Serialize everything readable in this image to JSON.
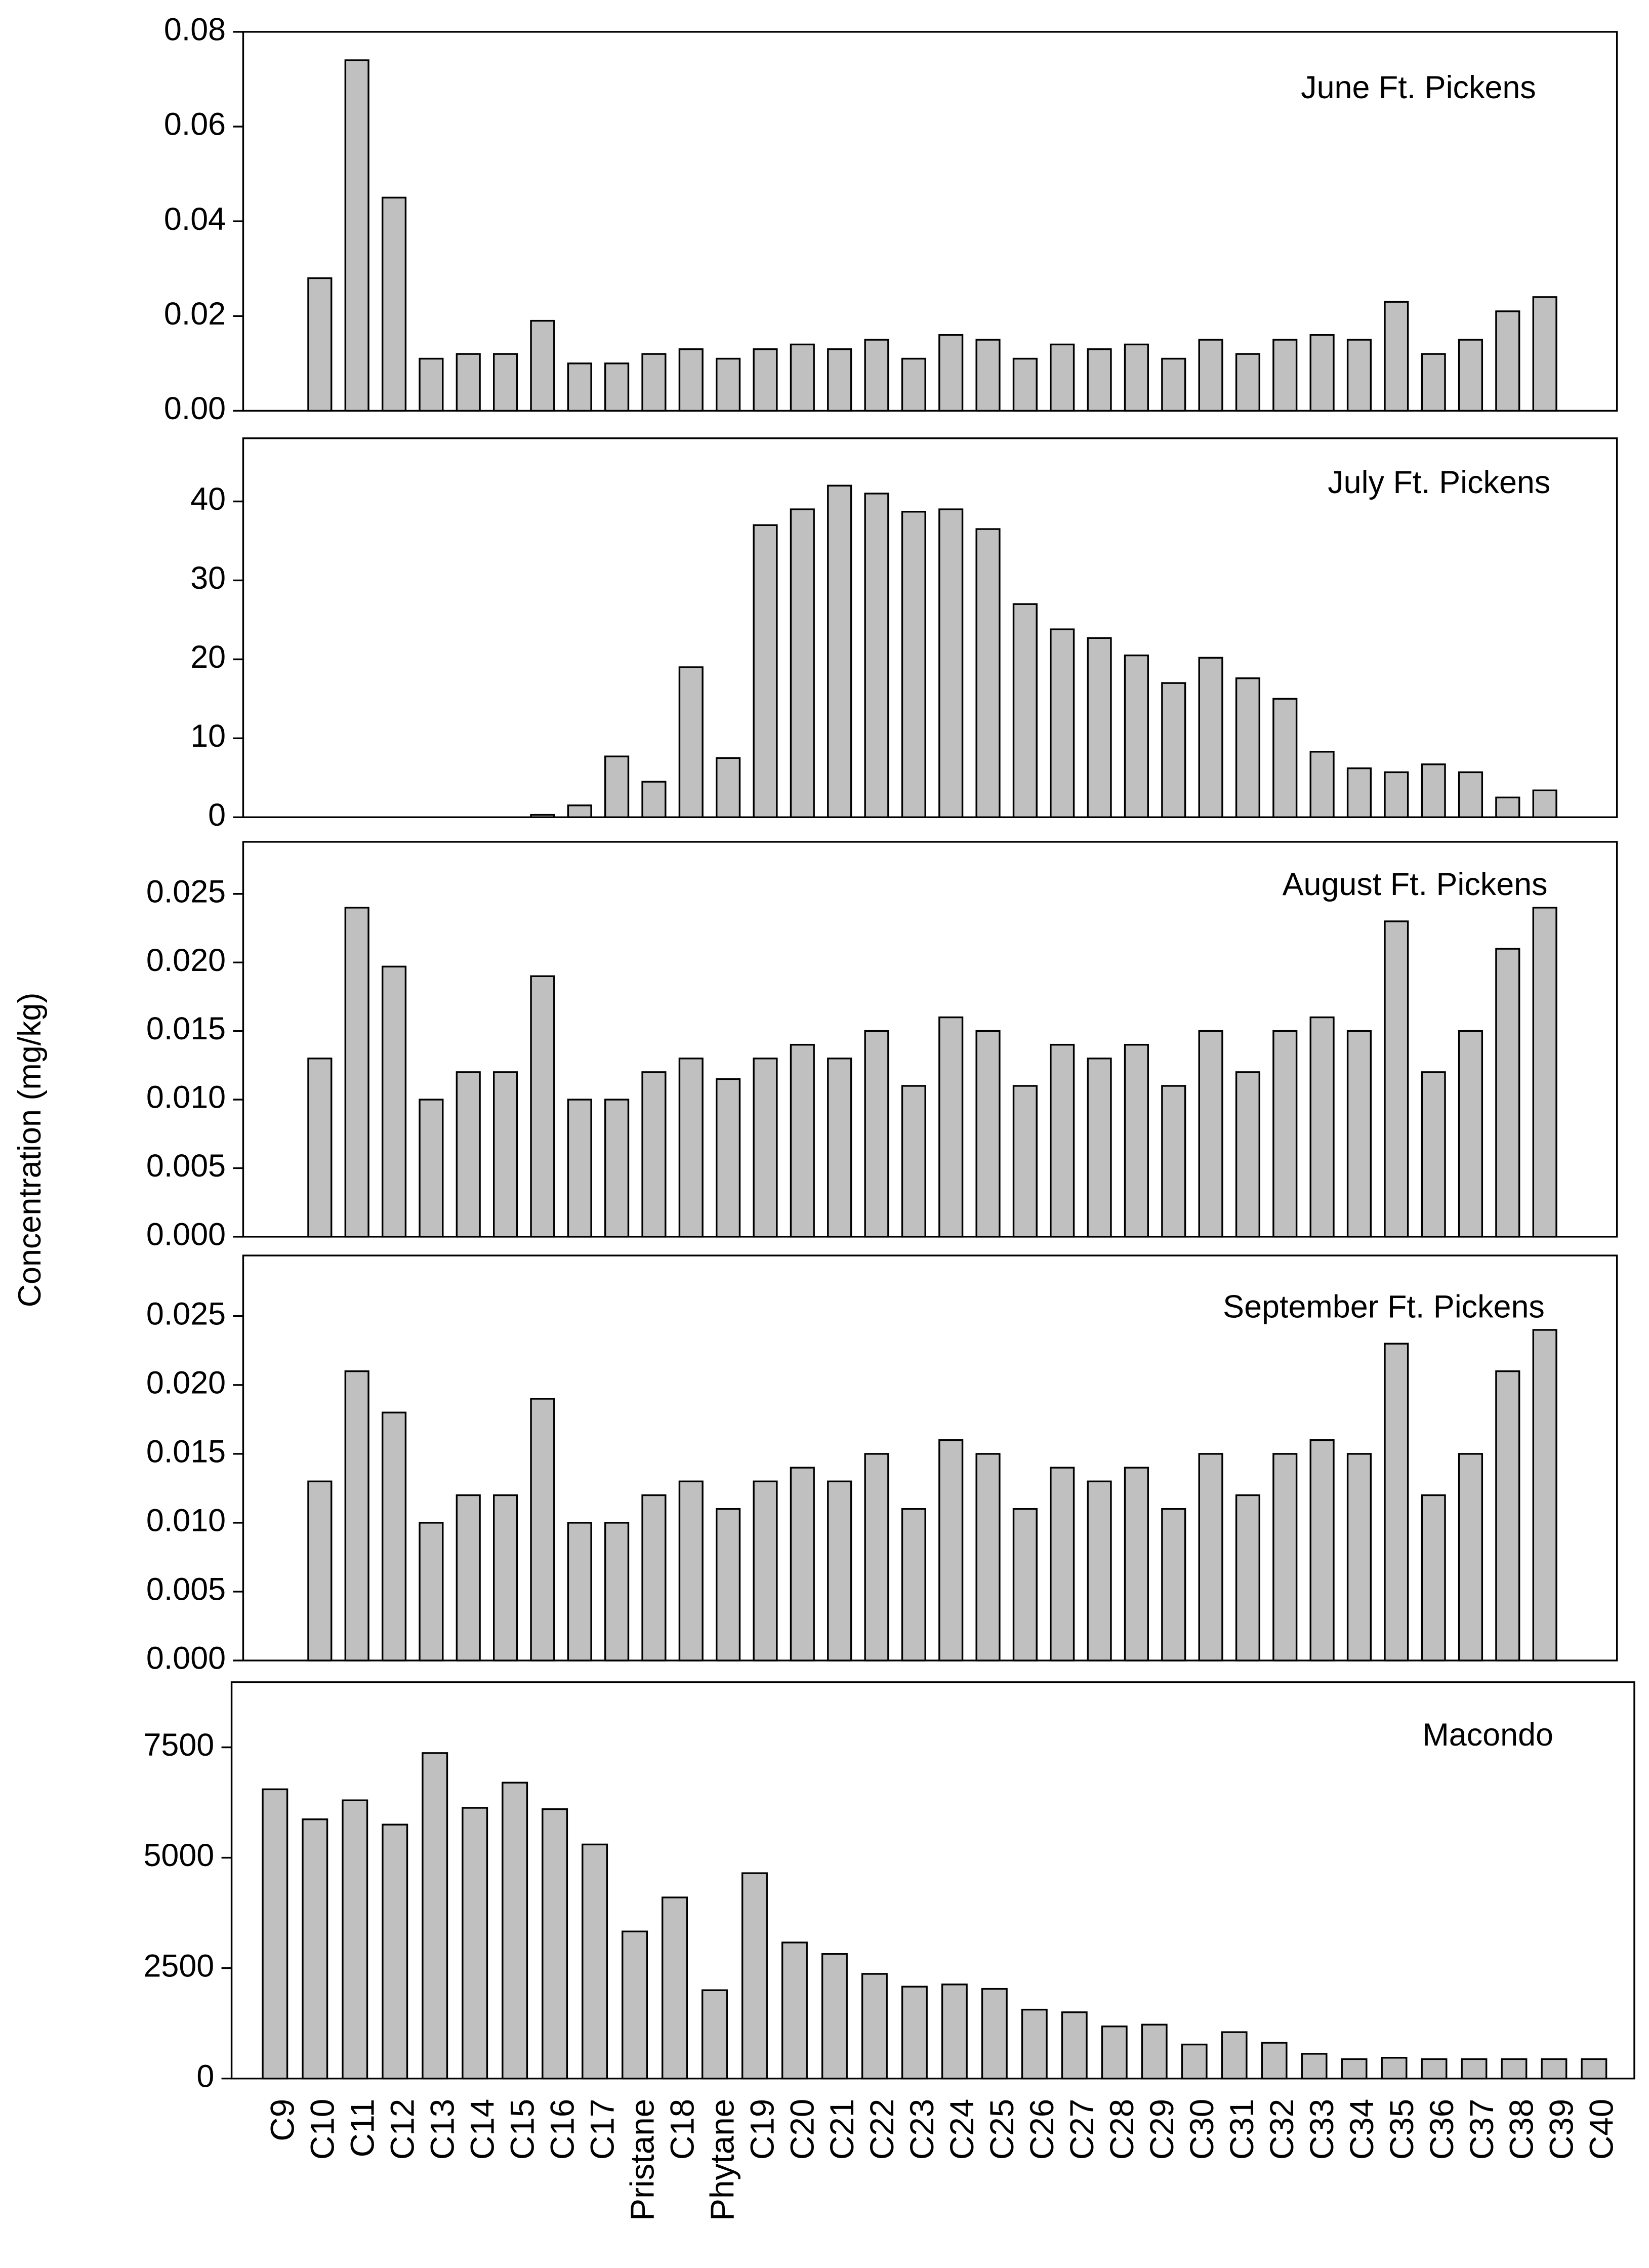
{
  "ylabel": "Concentration (mg/kg)",
  "chart_data": [
    {
      "type": "bar",
      "title": "June Ft. Pickens",
      "color": "#c0c0c0",
      "values": [
        0.028,
        0.074,
        0.045,
        0.011,
        0.012,
        0.012,
        0.019,
        0.01,
        0.01,
        0.012,
        0.013,
        0.011,
        0.013,
        0.014,
        0.013,
        0.015,
        0.011,
        0.016,
        0.015,
        0.011,
        0.014,
        0.013,
        0.014,
        0.011,
        0.015,
        0.012,
        0.015,
        0.016,
        0.015,
        0.023,
        0.012,
        0.015,
        0.021,
        0.024
      ],
      "ylim": [
        0,
        0.08
      ],
      "yticks": [
        {
          "value": 0,
          "label": "0.00"
        },
        0.02,
        0.04,
        0.06,
        0.08
      ]
    },
    {
      "type": "bar",
      "title": "July Ft. Pickens",
      "color": "#c0c0c0",
      "values": [
        0,
        0,
        0,
        0,
        0,
        0,
        0.3,
        1.5,
        7.7,
        4.5,
        19,
        7.5,
        37,
        39,
        42,
        41,
        38.7,
        39,
        36.5,
        27,
        23.8,
        22.7,
        20.5,
        17,
        20.2,
        17.6,
        15,
        8.3,
        6.2,
        5.7,
        6.7,
        5.7,
        2.5,
        3.4
      ],
      "ylim": [
        0,
        48
      ],
      "yticks": [
        0,
        10,
        20,
        30,
        40
      ]
    },
    {
      "type": "bar",
      "title": "August Ft. Pickens",
      "color": "#c0c0c0",
      "values": [
        0.013,
        0.024,
        0.0197,
        0.01,
        0.012,
        0.012,
        0.019,
        0.01,
        0.01,
        0.012,
        0.013,
        0.0115,
        0.013,
        0.014,
        0.013,
        0.015,
        0.011,
        0.016,
        0.015,
        0.011,
        0.014,
        0.013,
        0.014,
        0.011,
        0.015,
        0.012,
        0.015,
        0.016,
        0.015,
        0.023,
        0.012,
        0.015,
        0.021,
        0.024
      ],
      "ylim": [
        0,
        0.0288
      ],
      "yticks": [
        {
          "value": 0,
          "label": "0.000"
        },
        0.005,
        {
          "value": 0.01,
          "label": "0.010"
        },
        0.015,
        {
          "value": 0.02,
          "label": "0.020"
        },
        0.025
      ]
    },
    {
      "type": "bar",
      "title": "September Ft. Pickens",
      "color": "#c0c0c0",
      "values": [
        0.013,
        0.021,
        0.018,
        0.01,
        0.012,
        0.012,
        0.019,
        0.01,
        0.01,
        0.012,
        0.013,
        0.011,
        0.013,
        0.014,
        0.013,
        0.015,
        0.011,
        0.016,
        0.015,
        0.011,
        0.014,
        0.013,
        0.014,
        0.011,
        0.015,
        0.012,
        0.015,
        0.016,
        0.015,
        0.023,
        0.012,
        0.015,
        0.021,
        0.024
      ],
      "ylim": [
        0,
        0.0294
      ],
      "yticks": [
        {
          "value": 0,
          "label": "0.000"
        },
        0.005,
        {
          "value": 0.01,
          "label": "0.010"
        },
        0.015,
        {
          "value": 0.02,
          "label": "0.020"
        },
        0.025
      ]
    },
    {
      "type": "bar",
      "title": "Macondo",
      "color": "#c0c0c0",
      "categories": [
        "C9",
        "C10",
        "C11",
        "C12",
        "C13",
        "C14",
        "C15",
        "C16",
        "C17",
        "Pristane",
        "C18",
        "Phytane",
        "C19",
        "C20",
        "C21",
        "C22",
        "C23",
        "C24",
        "C25",
        "C26",
        "C27",
        "C28",
        "C29",
        "C30",
        "C31",
        "C32",
        "C33",
        "C34",
        "C35",
        "C36",
        "C37",
        "C38",
        "C39",
        "C40"
      ],
      "values": [
        6550,
        5870,
        6300,
        5750,
        7370,
        6130,
        6700,
        6100,
        5300,
        3330,
        4100,
        2000,
        4650,
        3080,
        2820,
        2370,
        2080,
        2130,
        2030,
        1560,
        1500,
        1180,
        1220,
        770,
        1050,
        810,
        560,
        440,
        470,
        440,
        440,
        440,
        440,
        440
      ],
      "ylim": [
        0,
        8975
      ],
      "yticks": [
        0,
        2500,
        5000,
        7500
      ]
    }
  ]
}
